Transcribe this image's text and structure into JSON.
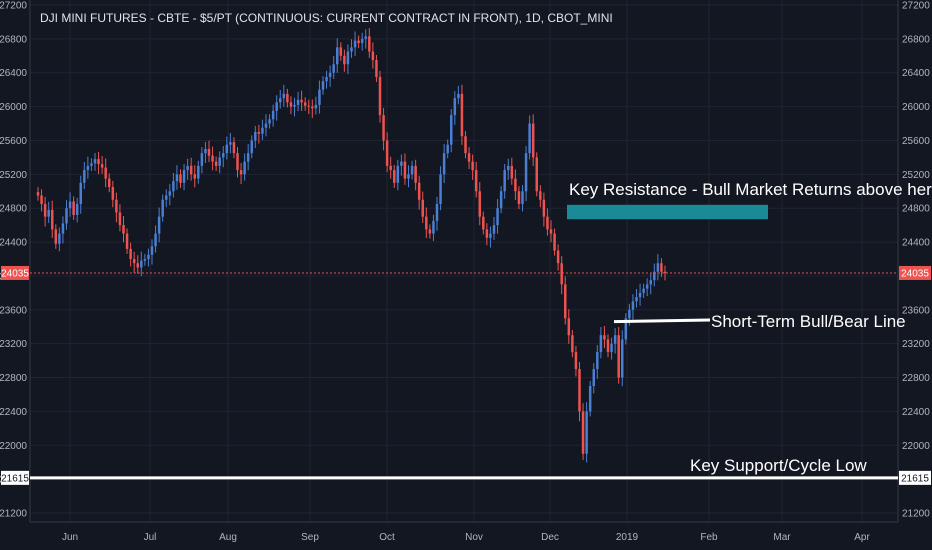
{
  "chart_data": {
    "type": "candlestick",
    "title": "DJI MINI FUTURES - CBTE - $5/PT (CONTINUOUS: CURRENT CONTRACT IN FRONT), 1D, CBOT_MINI",
    "y_ticks": [
      27200,
      26800,
      26400,
      26000,
      25600,
      25200,
      24800,
      24400,
      24000,
      23600,
      23200,
      22800,
      22400,
      22000,
      21600,
      21200
    ],
    "y_range": [
      21050,
      27250
    ],
    "x_labels": [
      "Jun",
      "Jul",
      "Aug",
      "Sep",
      "Oct",
      "Nov",
      "Dec",
      "2019",
      "Feb",
      "Mar",
      "Apr"
    ],
    "last_price": "24035",
    "support_price": "21615",
    "up_color": "#4a7fd4",
    "down_color": "#ef5350",
    "background": "#131722",
    "grid": true,
    "closes": [
      24950,
      24850,
      24700,
      24780,
      24550,
      24380,
      24500,
      24620,
      24800,
      24880,
      24720,
      24850,
      25100,
      25250,
      25300,
      25330,
      25380,
      25320,
      25280,
      25150,
      25050,
      24900,
      24750,
      24600,
      24500,
      24320,
      24200,
      24150,
      24100,
      24180,
      24200,
      24250,
      24350,
      24500,
      24700,
      24900,
      24950,
      25000,
      25120,
      25200,
      25100,
      25250,
      25300,
      25200,
      25150,
      25300,
      25450,
      25500,
      25420,
      25350,
      25300,
      25400,
      25450,
      25550,
      25580,
      25450,
      25250,
      25200,
      25350,
      25450,
      25600,
      25700,
      25680,
      25750,
      25800,
      25850,
      25950,
      26050,
      26100,
      26150,
      26050,
      26000,
      26020,
      26080,
      26050,
      26010,
      26000,
      25980,
      26020,
      26200,
      26300,
      26350,
      26400,
      26500,
      26700,
      26600,
      26500,
      26650,
      26700,
      26780,
      26750,
      26800,
      26830,
      26650,
      26550,
      26350,
      25900,
      25600,
      25300,
      25250,
      25100,
      25300,
      25350,
      25150,
      25200,
      25300,
      25100,
      24900,
      24700,
      24550,
      24500,
      24650,
      24850,
      25200,
      25450,
      25550,
      25900,
      26100,
      26150,
      25650,
      25450,
      25350,
      25250,
      25000,
      24700,
      24550,
      24450,
      24500,
      24600,
      24800,
      25000,
      25250,
      25300,
      25150,
      25000,
      24850,
      25000,
      25450,
      25800,
      25400,
      25000,
      24900,
      24700,
      24550,
      24500,
      24300,
      24150,
      23900,
      23500,
      23300,
      23100,
      22900,
      22400,
      21900,
      22400,
      22700,
      22900,
      23100,
      23300,
      23250,
      23100,
      23200,
      23300,
      22800,
      23250,
      23500,
      23600,
      23700,
      23750,
      23800,
      23850,
      23900,
      23950,
      24050,
      24150,
      24050,
      24035
    ],
    "annotations": {
      "resistance": "Key Resistance - Bull Market Returns above here",
      "bullbear": "Short-Term Bull/Bear Line",
      "support": "Key Support/Cycle Low"
    },
    "resistance_zone": [
      24670,
      24840
    ],
    "bullbear_level": [
      23460,
      23480
    ]
  }
}
